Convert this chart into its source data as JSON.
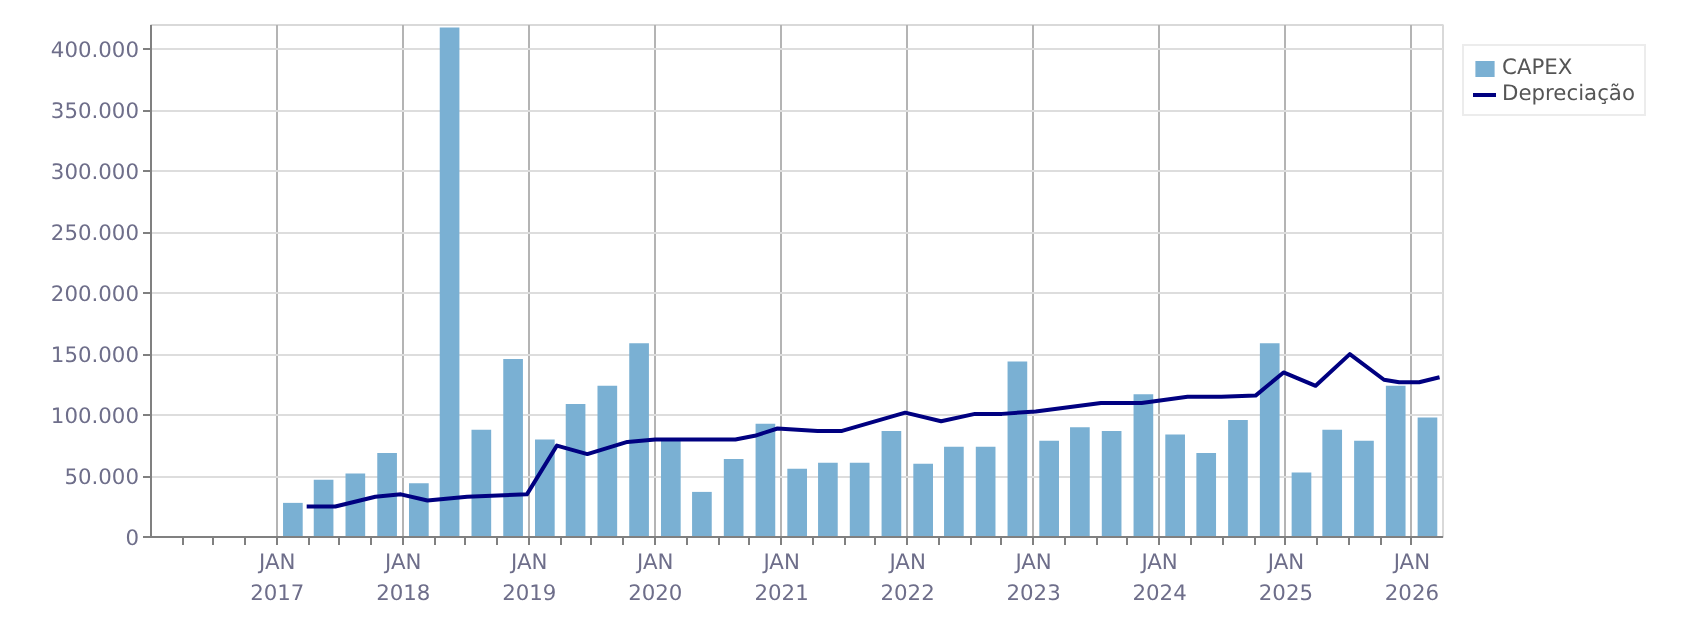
{
  "chart_data": {
    "type": "bar",
    "x": [
      "2017-02-15",
      "2017-05-15",
      "2017-08-15",
      "2017-11-15",
      "2018-02-15",
      "2018-05-15",
      "2018-08-15",
      "2018-11-15",
      "2019-02-15",
      "2019-05-15",
      "2019-08-15",
      "2019-11-15",
      "2020-02-15",
      "2020-05-15",
      "2020-08-15",
      "2020-11-15",
      "2021-02-15",
      "2021-05-15",
      "2021-08-15",
      "2021-11-15",
      "2022-02-15",
      "2022-05-15",
      "2022-08-15",
      "2022-11-15",
      "2023-02-15",
      "2023-05-15",
      "2023-08-15",
      "2023-11-15",
      "2024-02-15",
      "2024-05-15",
      "2024-08-15",
      "2024-11-15",
      "2025-02-15",
      "2025-05-15",
      "2025-08-15",
      "2025-11-15",
      "2026-02-15"
    ],
    "series": [
      {
        "name": "CAPEX",
        "color": "#7ab0d3",
        "values": [
          28000,
          47000,
          52000,
          69000,
          44000,
          418000,
          88000,
          146000,
          80000,
          109000,
          124000,
          159000,
          79000,
          37000,
          64000,
          93000,
          56000,
          61000,
          61000,
          87000,
          60000,
          74000,
          74000,
          144000,
          79000,
          90000,
          87000,
          117000,
          84000,
          69000,
          96000,
          159000,
          53000,
          88000,
          79000,
          124000,
          98000
        ]
      },
      {
        "name": "Depreciação",
        "type": "line",
        "color": "#000080",
        "x": [
          "2017-03-27",
          "2017-06-18",
          "2017-10-12",
          "2017-12-25",
          "2018-03-12",
          "2018-07-05",
          "2018-12-25",
          "2019-03-22",
          "2019-06-18",
          "2019-10-12",
          "2020-01-01",
          "2020-08-20",
          "2020-10-15",
          "2020-12-20",
          "2021-04-15",
          "2021-06-25",
          "2021-12-25",
          "2022-04-08",
          "2022-07-15",
          "2022-10-01",
          "2023-01-07",
          "2023-07-15",
          "2023-11-10",
          "2024-03-22",
          "2024-06-28",
          "2024-10-05",
          "2024-12-25",
          "2025-03-28",
          "2025-07-05",
          "2025-10-12",
          "2025-11-25",
          "2026-01-22",
          "2026-03-22"
        ],
        "values": [
          25000,
          25000,
          33000,
          35000,
          30000,
          33000,
          35000,
          75000,
          68000,
          78000,
          80000,
          80000,
          83000,
          89000,
          87000,
          87000,
          102000,
          95000,
          101000,
          101000,
          103000,
          110000,
          110000,
          115000,
          115000,
          116000,
          135000,
          124000,
          150000,
          129000,
          127000,
          127000,
          131000
        ]
      }
    ],
    "xlim": [
      "2016-01-01",
      "2026-04-01"
    ],
    "xticks": [
      {
        "value": "2016-04-01",
        "label": null
      },
      {
        "value": "2016-07-01",
        "label": null
      },
      {
        "value": "2016-10-01",
        "label": null
      },
      {
        "value": "2017-01-01",
        "label": "JAN\n2017"
      },
      {
        "value": "2017-04-01",
        "label": null
      },
      {
        "value": "2017-07-01",
        "label": null
      },
      {
        "value": "2017-10-01",
        "label": null
      },
      {
        "value": "2018-01-01",
        "label": "JAN\n2018"
      },
      {
        "value": "2018-04-01",
        "label": null
      },
      {
        "value": "2018-07-01",
        "label": null
      },
      {
        "value": "2018-10-01",
        "label": null
      },
      {
        "value": "2019-01-01",
        "label": "JAN\n2019"
      },
      {
        "value": "2019-04-01",
        "label": null
      },
      {
        "value": "2019-07-01",
        "label": null
      },
      {
        "value": "2019-10-01",
        "label": null
      },
      {
        "value": "2020-01-01",
        "label": "JAN\n2020"
      },
      {
        "value": "2020-04-01",
        "label": null
      },
      {
        "value": "2020-07-01",
        "label": null
      },
      {
        "value": "2020-10-01",
        "label": null
      },
      {
        "value": "2021-01-01",
        "label": "JAN\n2021"
      },
      {
        "value": "2021-04-01",
        "label": null
      },
      {
        "value": "2021-07-01",
        "label": null
      },
      {
        "value": "2021-10-01",
        "label": null
      },
      {
        "value": "2022-01-01",
        "label": "JAN\n2022"
      },
      {
        "value": "2022-04-01",
        "label": null
      },
      {
        "value": "2022-07-01",
        "label": null
      },
      {
        "value": "2022-10-01",
        "label": null
      },
      {
        "value": "2023-01-01",
        "label": "JAN\n2023"
      },
      {
        "value": "2023-04-01",
        "label": null
      },
      {
        "value": "2023-07-01",
        "label": null
      },
      {
        "value": "2023-10-01",
        "label": null
      },
      {
        "value": "2024-01-01",
        "label": "JAN\n2024"
      },
      {
        "value": "2024-04-01",
        "label": null
      },
      {
        "value": "2024-07-01",
        "label": null
      },
      {
        "value": "2024-10-01",
        "label": null
      },
      {
        "value": "2025-01-01",
        "label": "JAN\n2025"
      },
      {
        "value": "2025-04-01",
        "label": null
      },
      {
        "value": "2025-07-01",
        "label": null
      },
      {
        "value": "2025-10-01",
        "label": null
      },
      {
        "value": "2026-01-01",
        "label": "JAN\n2026"
      }
    ],
    "ylim": [
      0,
      420000
    ],
    "yticks": [
      {
        "value": 0,
        "label": "0"
      },
      {
        "value": 50000,
        "label": "50.000"
      },
      {
        "value": 100000,
        "label": "100.000"
      },
      {
        "value": 150000,
        "label": "150.000"
      },
      {
        "value": 200000,
        "label": "200.000"
      },
      {
        "value": 250000,
        "label": "250.000"
      },
      {
        "value": 300000,
        "label": "300.000"
      },
      {
        "value": 350000,
        "label": "350.000"
      },
      {
        "value": 400000,
        "label": "400.000"
      }
    ],
    "grid": true,
    "legend": "top right",
    "marker": "none",
    "line_style": "solid"
  }
}
